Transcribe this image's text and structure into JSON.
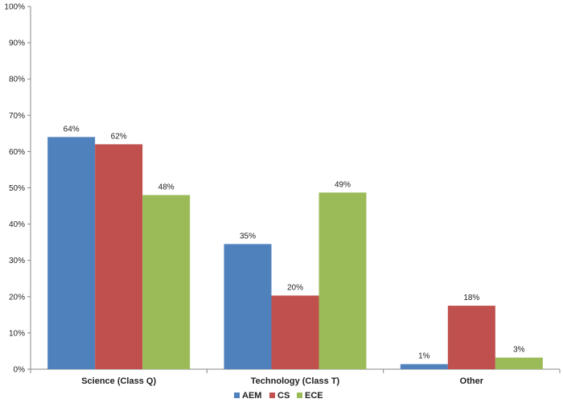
{
  "chart_data": {
    "type": "bar",
    "categories": [
      "Science (Class Q)",
      "Technology (Class T)",
      "Other"
    ],
    "series": [
      {
        "name": "AEM",
        "color": "#4F81BD",
        "values": [
          64,
          34.5,
          1.4
        ],
        "labels": [
          "64%",
          "35%",
          "1%"
        ]
      },
      {
        "name": "CS",
        "color": "#C0504D",
        "values": [
          62,
          20.3,
          17.5
        ],
        "labels": [
          "62%",
          "20%",
          "18%"
        ]
      },
      {
        "name": "ECE",
        "color": "#9BBB59",
        "values": [
          48,
          48.7,
          3.2
        ],
        "labels": [
          "48%",
          "49%",
          "3%"
        ]
      }
    ],
    "ylim": [
      0,
      100
    ],
    "yticks": [
      0,
      10,
      20,
      30,
      40,
      50,
      60,
      70,
      80,
      90,
      100
    ],
    "ytick_labels": [
      "0%",
      "10%",
      "20%",
      "30%",
      "40%",
      "50%",
      "60%",
      "70%",
      "80%",
      "90%",
      "100%"
    ],
    "legend_position": "bottom-center",
    "grid": false,
    "title": "",
    "xlabel": "",
    "ylabel": ""
  }
}
